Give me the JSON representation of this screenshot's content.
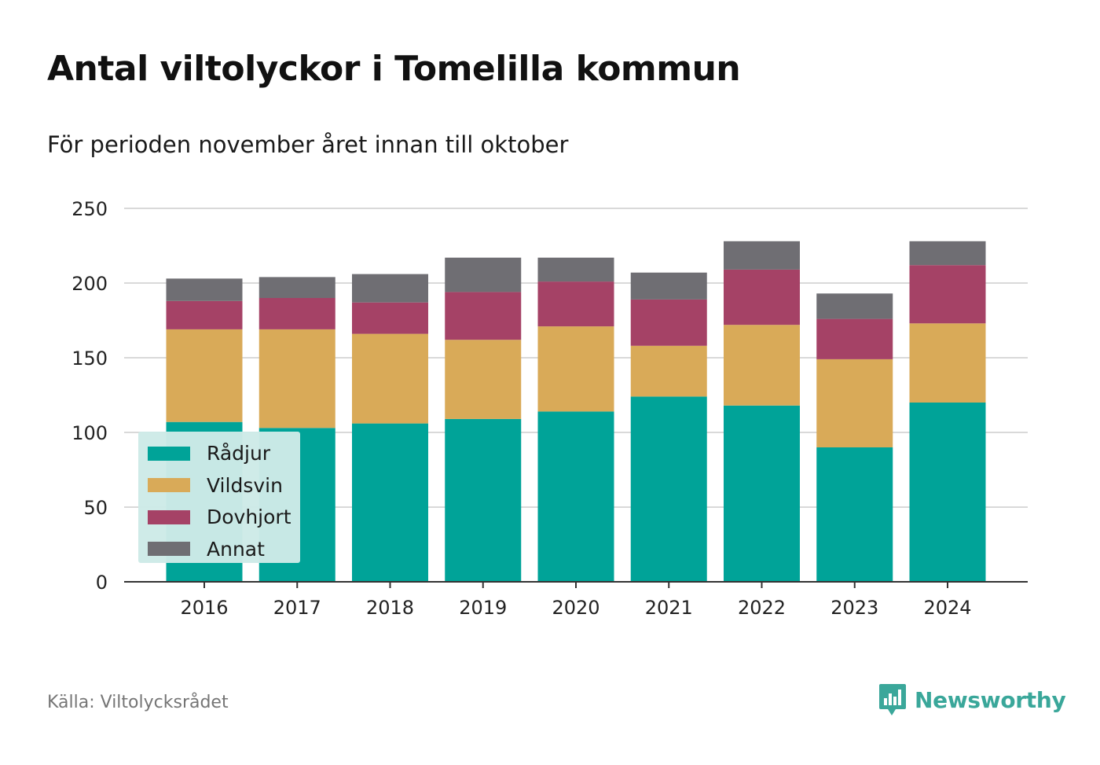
{
  "title": "Antal viltolyckor i Tomelilla kommun",
  "subtitle": "För perioden november året innan till oktober",
  "source": "Källa: Viltolycksrådet",
  "brand": {
    "name": "Newsworthy",
    "icon": "newsworthy-logo-icon",
    "color": "#3aa79a"
  },
  "chart_data": {
    "type": "bar",
    "stacked": true,
    "categories": [
      "2016",
      "2017",
      "2018",
      "2019",
      "2020",
      "2021",
      "2022",
      "2023",
      "2024"
    ],
    "series": [
      {
        "name": "Rådjur",
        "color": "#00a398",
        "values": [
          107,
          103,
          106,
          109,
          114,
          124,
          118,
          90,
          120
        ]
      },
      {
        "name": "Vildsvin",
        "color": "#d9aa58",
        "values": [
          62,
          66,
          60,
          53,
          57,
          34,
          54,
          59,
          53
        ]
      },
      {
        "name": "Dovhjort",
        "color": "#a54266",
        "values": [
          19,
          21,
          21,
          32,
          30,
          31,
          37,
          27,
          39
        ]
      },
      {
        "name": "Annat",
        "color": "#6f6e73",
        "values": [
          15,
          14,
          19,
          23,
          16,
          18,
          19,
          17,
          16
        ]
      }
    ],
    "ylim": [
      0,
      250
    ],
    "yticks": [
      0,
      50,
      100,
      150,
      200,
      250
    ],
    "xlabel": "",
    "ylabel": "",
    "grid": true,
    "legend": "bottom-left"
  }
}
